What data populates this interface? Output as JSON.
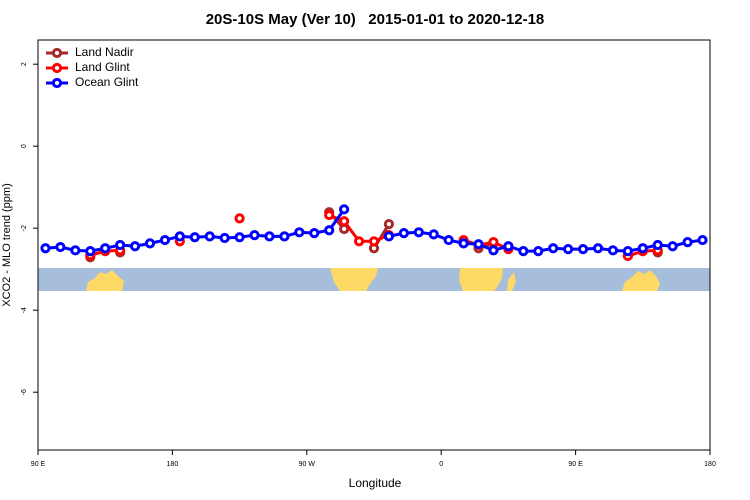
{
  "chart_data": {
    "type": "line",
    "title": "20S-10S May (Ver 10)   2015-01-01 to 2020-12-18",
    "x_label": "Longitude",
    "y_label": "XCO2 - MLO trend (ppm)",
    "x": [
      95,
      105,
      115,
      125,
      135,
      145,
      155,
      165,
      175,
      185,
      195,
      205,
      215,
      225,
      235,
      245,
      255,
      265,
      275,
      285,
      295,
      305,
      315,
      325,
      335,
      345,
      355,
      365,
      375,
      385,
      395,
      405,
      415,
      425,
      435,
      445,
      455,
      465,
      475,
      485,
      495,
      505,
      515,
      525,
      535
    ],
    "xlim": [
      90,
      540
    ],
    "xticks": [
      {
        "value": 90,
        "label": "90 E"
      },
      {
        "value": 180,
        "label": "180"
      },
      {
        "value": 270,
        "label": "90 W"
      },
      {
        "value": 360,
        "label": "0"
      },
      {
        "value": 450,
        "label": "90 E"
      },
      {
        "value": 540,
        "label": "180"
      }
    ],
    "ylim": [
      -7.41,
      2.59
    ],
    "yticks": [
      2,
      0,
      -2,
      -4,
      -6
    ],
    "legend": "top-left",
    "series": [
      {
        "name": "Land Nadir",
        "color": "#a52a2a",
        "values": [
          null,
          null,
          null,
          -2.71,
          null,
          -2.59,
          null,
          null,
          null,
          null,
          null,
          null,
          null,
          null,
          null,
          null,
          null,
          null,
          null,
          -1.61,
          -2.02,
          null,
          -2.49,
          -1.9,
          null,
          null,
          null,
          null,
          null,
          -2.49,
          -2.37,
          null,
          null,
          null,
          null,
          null,
          null,
          null,
          null,
          -2.66,
          null,
          -2.59,
          null,
          null,
          null
        ]
      },
      {
        "name": "Land Glint",
        "color": "#ff0000",
        "values": [
          null,
          null,
          null,
          -2.66,
          -2.56,
          -2.54,
          null,
          null,
          null,
          -2.32,
          null,
          null,
          null,
          -1.76,
          null,
          null,
          null,
          null,
          null,
          -1.68,
          -1.83,
          -2.32,
          -2.32,
          -2.17,
          null,
          null,
          null,
          null,
          -2.29,
          -2.41,
          -2.34,
          -2.51,
          null,
          null,
          null,
          null,
          null,
          null,
          null,
          -2.68,
          -2.56,
          -2.54,
          null,
          null,
          null
        ]
      },
      {
        "name": "Ocean Glint",
        "color": "#0000ff",
        "values": [
          -2.49,
          -2.46,
          -2.54,
          -2.56,
          -2.49,
          -2.41,
          -2.44,
          -2.37,
          -2.29,
          -2.2,
          -2.22,
          -2.2,
          -2.24,
          -2.22,
          -2.17,
          -2.2,
          -2.2,
          -2.1,
          -2.12,
          -2.05,
          -1.54,
          null,
          null,
          -2.2,
          -2.12,
          -2.1,
          -2.15,
          -2.29,
          -2.37,
          -2.39,
          -2.54,
          -2.44,
          -2.56,
          -2.56,
          -2.49,
          -2.51,
          -2.51,
          -2.49,
          -2.54,
          -2.56,
          -2.49,
          -2.41,
          -2.44,
          -2.34,
          -2.29
        ]
      }
    ]
  }
}
